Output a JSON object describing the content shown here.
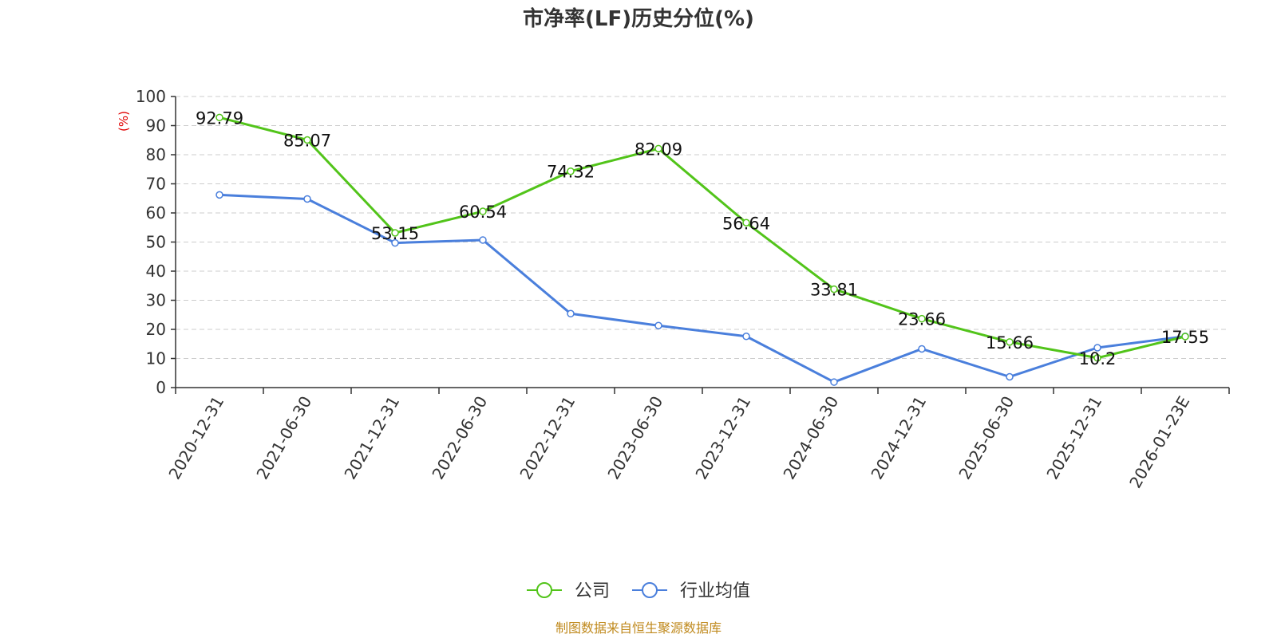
{
  "chart_data": {
    "type": "line",
    "title": "市净率(LF)历史分位(%)",
    "ylabel": "(%)",
    "xlabel": "",
    "ylim": [
      0,
      100
    ],
    "yticks": [
      0,
      10,
      20,
      30,
      40,
      50,
      60,
      70,
      80,
      90,
      100
    ],
    "grid": true,
    "legend_position": "bottom-center",
    "categories": [
      "2020-12-31",
      "2021-06-30",
      "2021-12-31",
      "2022-06-30",
      "2022-12-31",
      "2023-06-30",
      "2023-12-31",
      "2024-06-30",
      "2024-12-31",
      "2025-06-30",
      "2025-12-31",
      "2026-01-23E"
    ],
    "series": [
      {
        "name": "公司",
        "color": "#52c41a",
        "values": [
          92.79,
          85.07,
          53.15,
          60.54,
          74.32,
          82.09,
          56.64,
          33.81,
          23.66,
          15.66,
          10.2,
          17.55
        ],
        "labels": [
          "92.79",
          "85.07",
          "53.15",
          "60.54",
          "74.32",
          "82.09",
          "56.64",
          "33.81",
          "23.66",
          "15.66",
          "10.2",
          "17.55"
        ]
      },
      {
        "name": "行业均值",
        "color": "#4a7fdc",
        "values": [
          66.2,
          64.8,
          49.7,
          50.7,
          25.4,
          21.3,
          17.6,
          1.9,
          13.3,
          3.7,
          13.7,
          17.6
        ]
      }
    ],
    "source": "制图数据来自恒生聚源数据库"
  }
}
